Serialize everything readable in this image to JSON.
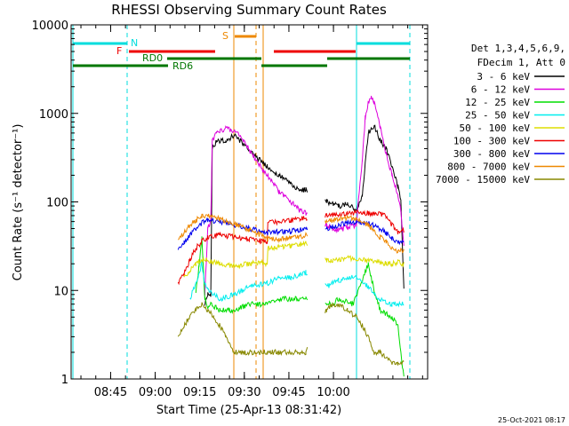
{
  "chart_data": {
    "type": "line",
    "title": "RHESSI Observing Summary Count Rates",
    "xlabel": "Start Time (25-Apr-13 08:31:42)",
    "ylabel": "Count Rate (s⁻¹ detector⁻¹)",
    "ylog": true,
    "ylim": [
      1,
      10000
    ],
    "xlim_minutes": [
      8.5,
      9.12
    ],
    "xticks": [
      "08:45",
      "09:00",
      "09:15",
      "09:30",
      "09:45",
      "10:00"
    ],
    "yticks": [
      "1",
      "10",
      "100",
      "1000",
      "10000"
    ],
    "header_lines": [
      "Det 1,3,4,5,6,9,",
      "FDecim 1, Att 0"
    ],
    "footer_date": "25-Oct-2021 08:17",
    "flags": {
      "N": "N",
      "F": "F",
      "S": "S",
      "RD0": "RD0",
      "RD6": "RD6"
    },
    "series": [
      {
        "name": "3 - 6 keV",
        "color": "#000000",
        "points": [
          [
            45,
            7
          ],
          [
            46,
            9
          ],
          [
            47,
            9
          ],
          [
            47.5,
            400
          ],
          [
            49,
            480
          ],
          [
            52,
            500
          ],
          [
            55,
            560
          ],
          [
            58,
            450
          ],
          [
            62,
            330
          ],
          [
            66,
            250
          ],
          [
            70,
            200
          ],
          [
            74,
            160
          ],
          [
            77,
            130
          ],
          [
            79,
            140
          ],
          [
            86,
            100
          ],
          [
            88,
            95
          ],
          [
            90,
            90
          ],
          [
            93,
            95
          ],
          [
            96,
            80
          ],
          [
            98,
            120
          ],
          [
            100,
            600
          ],
          [
            102,
            720
          ],
          [
            104,
            500
          ],
          [
            106,
            400
          ],
          [
            108,
            250
          ],
          [
            110,
            150
          ],
          [
            111,
            100
          ],
          [
            112,
            10
          ]
        ]
      },
      {
        "name": "6 - 12 keV",
        "color": "#dd00dd",
        "points": [
          [
            45,
            9
          ],
          [
            46,
            50
          ],
          [
            47,
            60
          ],
          [
            47.5,
            480
          ],
          [
            49,
            600
          ],
          [
            52,
            680
          ],
          [
            55,
            640
          ],
          [
            58,
            500
          ],
          [
            62,
            300
          ],
          [
            66,
            200
          ],
          [
            70,
            130
          ],
          [
            74,
            100
          ],
          [
            77,
            80
          ],
          [
            79,
            75
          ],
          [
            86,
            55
          ],
          [
            88,
            50
          ],
          [
            90,
            48
          ],
          [
            93,
            52
          ],
          [
            96,
            55
          ],
          [
            98,
            300
          ],
          [
            99,
            900
          ],
          [
            100,
            1300
          ],
          [
            101,
            1550
          ],
          [
            102,
            1300
          ],
          [
            104,
            700
          ],
          [
            106,
            350
          ],
          [
            108,
            200
          ],
          [
            110,
            120
          ],
          [
            111,
            80
          ],
          [
            112,
            30
          ]
        ]
      },
      {
        "name": "12 - 25 keV",
        "color": "#00dd00",
        "points": [
          [
            42,
            10
          ],
          [
            43,
            18
          ],
          [
            44,
            40
          ],
          [
            45,
            8
          ],
          [
            46,
            6
          ],
          [
            47,
            7
          ],
          [
            50,
            6
          ],
          [
            55,
            6
          ],
          [
            60,
            7
          ],
          [
            66,
            7
          ],
          [
            70,
            8
          ],
          [
            77,
            8
          ],
          [
            79,
            8
          ],
          [
            86,
            7
          ],
          [
            88,
            7
          ],
          [
            90,
            8
          ],
          [
            95,
            7
          ],
          [
            100,
            20
          ],
          [
            102,
            10
          ],
          [
            104,
            6
          ],
          [
            108,
            5
          ],
          [
            110,
            4
          ],
          [
            112,
            1
          ]
        ]
      },
      {
        "name": "25 - 50 keV",
        "color": "#00eeee",
        "points": [
          [
            40,
            8
          ],
          [
            42,
            12
          ],
          [
            44,
            20
          ],
          [
            45,
            12
          ],
          [
            46,
            10
          ],
          [
            48,
            9
          ],
          [
            50,
            8
          ],
          [
            55,
            9
          ],
          [
            60,
            11
          ],
          [
            66,
            12
          ],
          [
            70,
            14
          ],
          [
            74,
            14
          ],
          [
            77,
            15
          ],
          [
            79,
            16
          ],
          [
            86,
            11
          ],
          [
            88,
            12
          ],
          [
            90,
            13
          ],
          [
            93,
            14
          ],
          [
            96,
            14
          ],
          [
            100,
            11
          ],
          [
            102,
            9
          ],
          [
            104,
            8
          ],
          [
            108,
            7
          ],
          [
            110,
            7
          ],
          [
            112,
            7
          ]
        ]
      },
      {
        "name": "50 - 100 keV",
        "color": "#dddd00",
        "points": [
          [
            38,
            14
          ],
          [
            40,
            17
          ],
          [
            42,
            20
          ],
          [
            44,
            22
          ],
          [
            46,
            22
          ],
          [
            50,
            20
          ],
          [
            55,
            19
          ],
          [
            60,
            20
          ],
          [
            64,
            21
          ],
          [
            66,
            20
          ],
          [
            66.2,
            30
          ],
          [
            70,
            31
          ],
          [
            74,
            32
          ],
          [
            77,
            33
          ],
          [
            79,
            34
          ],
          [
            86,
            22
          ],
          [
            88,
            22
          ],
          [
            90,
            22
          ],
          [
            93,
            23
          ],
          [
            96,
            23
          ],
          [
            100,
            22
          ],
          [
            104,
            21
          ],
          [
            106,
            20
          ],
          [
            108,
            20
          ],
          [
            110,
            21
          ],
          [
            112,
            20
          ]
        ]
      },
      {
        "name": "100 - 300 keV",
        "color": "#ee0000",
        "points": [
          [
            36,
            12
          ],
          [
            38,
            16
          ],
          [
            40,
            22
          ],
          [
            42,
            30
          ],
          [
            44,
            36
          ],
          [
            46,
            40
          ],
          [
            50,
            42
          ],
          [
            55,
            40
          ],
          [
            60,
            38
          ],
          [
            64,
            36
          ],
          [
            66,
            35
          ],
          [
            66.2,
            58
          ],
          [
            70,
            60
          ],
          [
            74,
            62
          ],
          [
            77,
            64
          ],
          [
            79,
            66
          ],
          [
            86,
            70
          ],
          [
            88,
            72
          ],
          [
            90,
            72
          ],
          [
            93,
            74
          ],
          [
            96,
            76
          ],
          [
            100,
            75
          ],
          [
            104,
            72
          ],
          [
            106,
            70
          ],
          [
            108,
            55
          ],
          [
            110,
            45
          ],
          [
            112,
            48
          ]
        ]
      },
      {
        "name": "300 - 800 keV",
        "color": "#0000ee",
        "points": [
          [
            36,
            28
          ],
          [
            38,
            35
          ],
          [
            40,
            42
          ],
          [
            42,
            50
          ],
          [
            44,
            58
          ],
          [
            46,
            62
          ],
          [
            50,
            60
          ],
          [
            55,
            55
          ],
          [
            60,
            50
          ],
          [
            64,
            46
          ],
          [
            66,
            44
          ],
          [
            66.2,
            45
          ],
          [
            70,
            46
          ],
          [
            74,
            47
          ],
          [
            77,
            48
          ],
          [
            79,
            50
          ],
          [
            86,
            50
          ],
          [
            88,
            52
          ],
          [
            90,
            55
          ],
          [
            93,
            58
          ],
          [
            96,
            60
          ],
          [
            100,
            58
          ],
          [
            104,
            50
          ],
          [
            106,
            45
          ],
          [
            108,
            38
          ],
          [
            110,
            35
          ],
          [
            112,
            35
          ]
        ]
      },
      {
        "name": "800 - 7000 keV",
        "color": "#ee8800",
        "points": [
          [
            36,
            38
          ],
          [
            38,
            45
          ],
          [
            40,
            55
          ],
          [
            42,
            62
          ],
          [
            44,
            68
          ],
          [
            46,
            70
          ],
          [
            50,
            64
          ],
          [
            55,
            56
          ],
          [
            60,
            48
          ],
          [
            64,
            42
          ],
          [
            66,
            38
          ],
          [
            66.2,
            38
          ],
          [
            70,
            38
          ],
          [
            74,
            39
          ],
          [
            77,
            40
          ],
          [
            79,
            42
          ],
          [
            86,
            60
          ],
          [
            88,
            62
          ],
          [
            90,
            64
          ],
          [
            93,
            66
          ],
          [
            96,
            65
          ],
          [
            100,
            55
          ],
          [
            104,
            40
          ],
          [
            106,
            35
          ],
          [
            108,
            30
          ],
          [
            110,
            28
          ],
          [
            112,
            28
          ]
        ]
      },
      {
        "name": "7000 - 15000 keV",
        "color": "#888800",
        "points": [
          [
            36,
            3
          ],
          [
            38,
            4
          ],
          [
            40,
            5
          ],
          [
            42,
            6
          ],
          [
            44,
            7
          ],
          [
            46,
            6
          ],
          [
            48,
            5
          ],
          [
            50,
            4
          ],
          [
            52,
            3
          ],
          [
            55,
            2
          ],
          [
            60,
            2
          ],
          [
            66,
            2
          ],
          [
            70,
            2
          ],
          [
            74,
            2
          ],
          [
            77,
            2
          ],
          [
            79,
            2
          ],
          [
            86,
            6
          ],
          [
            88,
            7
          ],
          [
            90,
            7
          ],
          [
            93,
            6
          ],
          [
            96,
            5
          ],
          [
            98,
            4
          ],
          [
            100,
            3
          ],
          [
            102,
            2
          ],
          [
            104,
            2
          ],
          [
            108,
            1.5
          ],
          [
            110,
            1.5
          ],
          [
            112,
            1.5
          ]
        ]
      }
    ]
  }
}
